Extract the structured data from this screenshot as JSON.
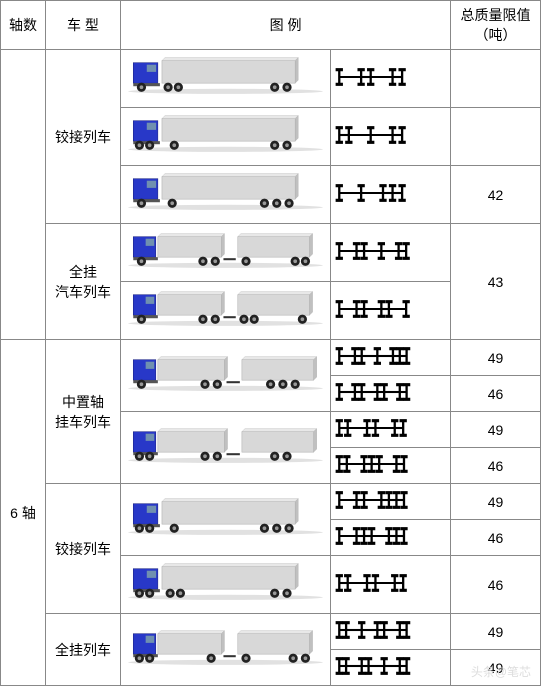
{
  "headers": {
    "axle_count": "轴数",
    "vehicle_type": "车 型",
    "illustration": "图  例",
    "weight_limit": "总质量限值\n（吨）"
  },
  "colors": {
    "cab": "#2838c8",
    "body": "#d8d8d8",
    "shadow": "#888888",
    "line": "#000000",
    "wheel": "#222222",
    "window": "#7090b0"
  },
  "groups": [
    {
      "axle_label": "",
      "types": [
        {
          "type_label": "铰接列车",
          "rows": [
            {
              "truck": "semi_1_2_2",
              "axles": [
                [
                  1
                ],
                [
                  1,
                  1
                ],
                [
                  1,
                  1
                ]
              ],
              "limit": ""
            },
            {
              "truck": "semi_2_1_2",
              "axles": [
                [
                  1,
                  1
                ],
                [
                  1
                ],
                [
                  1,
                  1
                ]
              ],
              "limit": ""
            },
            {
              "truck": "semi_1_1_3",
              "axles": [
                [
                  1
                ],
                [
                  1
                ],
                [
                  1,
                  1,
                  1
                ]
              ],
              "limit": "42"
            }
          ]
        },
        {
          "type_label": "全挂\n汽车列车",
          "rows": [
            {
              "truck": "full_2_1_2",
              "axles": [
                [
                  1
                ],
                [
                  1,
                  1
                ],
                [
                  1
                ],
                [
                  1,
                  1
                ]
              ],
              "limit_span": 2,
              "limit": "43"
            },
            {
              "truck": "full_2_2_1",
              "axles": [
                [
                  1
                ],
                [
                  1,
                  1
                ],
                [
                  1,
                  1
                ],
                [
                  1
                ]
              ]
            }
          ]
        }
      ]
    },
    {
      "axle_label": "6 轴",
      "types": [
        {
          "type_label": "中置轴\n挂车列车",
          "rows": [
            {
              "truck": "center_2_2_2",
              "truck_span": 2,
              "half": true,
              "sub": [
                {
                  "axles": [
                    [
                      1
                    ],
                    [
                      1,
                      1
                    ],
                    [
                      1
                    ],
                    [
                      1,
                      1,
                      1
                    ]
                  ],
                  "limit": "49"
                },
                {
                  "axles": [
                    [
                      1
                    ],
                    [
                      1,
                      1
                    ],
                    [
                      1,
                      1
                    ],
                    [
                      1,
                      1
                    ]
                  ],
                  "limit": "46"
                }
              ]
            },
            {
              "truck": "center_3_3",
              "truck_span": 2,
              "half": true,
              "sub": [
                {
                  "axles": [
                    [
                      1,
                      1
                    ],
                    [
                      1,
                      1
                    ],
                    [
                      1,
                      1
                    ]
                  ],
                  "limit": "49"
                },
                {
                  "axles": [
                    [
                      1,
                      1
                    ],
                    [
                      1,
                      1,
                      1
                    ],
                    [
                      1,
                      1
                    ]
                  ],
                  "limit": "46"
                }
              ]
            }
          ]
        },
        {
          "type_label": "铰接列车",
          "rows": [
            {
              "truck": "semi_2_1_3",
              "truck_span": 2,
              "half": true,
              "sub": [
                {
                  "axles": [
                    [
                      1
                    ],
                    [
                      1,
                      1
                    ],
                    [
                      1,
                      1,
                      1,
                      1
                    ]
                  ],
                  "limit": "49"
                },
                {
                  "axles": [
                    [
                      1
                    ],
                    [
                      1,
                      1,
                      1
                    ],
                    [
                      1,
                      1,
                      1
                    ]
                  ],
                  "limit": "46"
                }
              ]
            },
            {
              "truck": "semi_2_2_2",
              "axles": [
                [
                  1,
                  1
                ],
                [
                  1,
                  1
                ],
                [
                  1,
                  1
                ]
              ],
              "limit": "46"
            }
          ]
        },
        {
          "type_label": "全挂列车",
          "rows": [
            {
              "truck": "full_3_1_2",
              "truck_span": 2,
              "half": true,
              "sub": [
                {
                  "axles": [
                    [
                      1,
                      1
                    ],
                    [
                      1
                    ],
                    [
                      1,
                      1
                    ],
                    [
                      1,
                      1
                    ]
                  ],
                  "limit": "49"
                },
                {
                  "axles": [
                    [
                      1,
                      1
                    ],
                    [
                      1,
                      1
                    ],
                    [
                      1
                    ],
                    [
                      1,
                      1
                    ]
                  ],
                  "limit": "49"
                }
              ]
            }
          ]
        }
      ]
    }
  ],
  "watermark": "头条@笔芯"
}
